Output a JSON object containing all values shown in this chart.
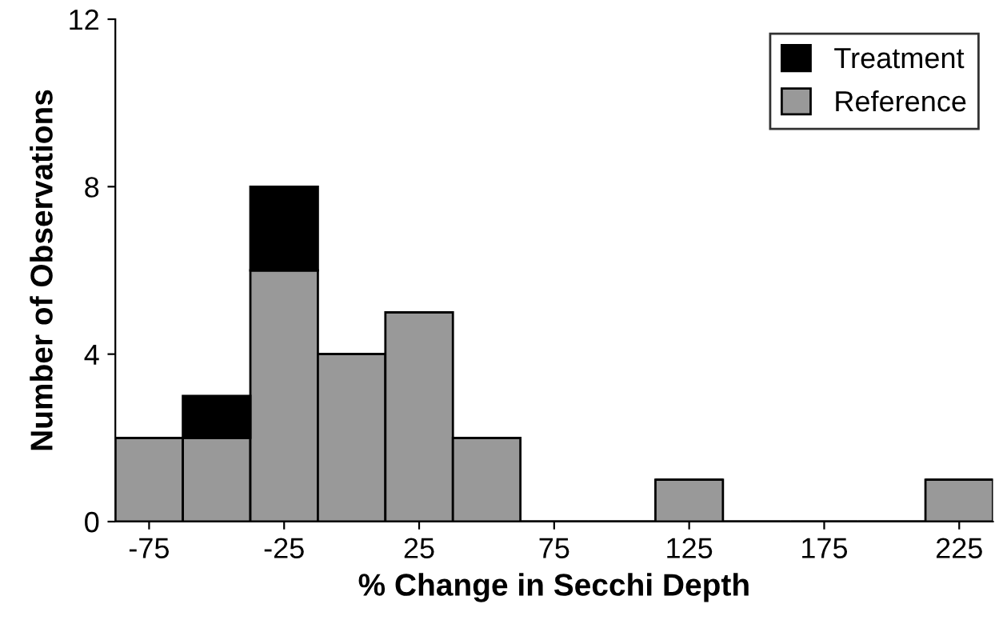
{
  "chart_data": {
    "type": "bar",
    "xlabel": "% Change in Secchi Depth",
    "ylabel": "Number of Observations",
    "x": [
      -75,
      -50,
      -25,
      0,
      25,
      50,
      75,
      100,
      125,
      150,
      175,
      200,
      225
    ],
    "stacked": true,
    "series": [
      {
        "name": "Reference",
        "color": "#999999",
        "values": [
          2,
          2,
          6,
          4,
          5,
          2,
          0,
          0,
          1,
          0,
          0,
          0,
          1
        ]
      },
      {
        "name": "Treatment",
        "color": "#000000",
        "values": [
          0,
          1,
          2,
          0,
          0,
          0,
          0,
          0,
          0,
          0,
          0,
          0,
          0
        ]
      }
    ],
    "xlim": [
      -87.5,
      237.5
    ],
    "xticks": [
      -75,
      -25,
      25,
      75,
      125,
      175,
      225
    ],
    "ylim": [
      0,
      12
    ],
    "yticks": [
      0,
      4,
      8,
      12
    ],
    "grid": false,
    "legend": "top right"
  }
}
